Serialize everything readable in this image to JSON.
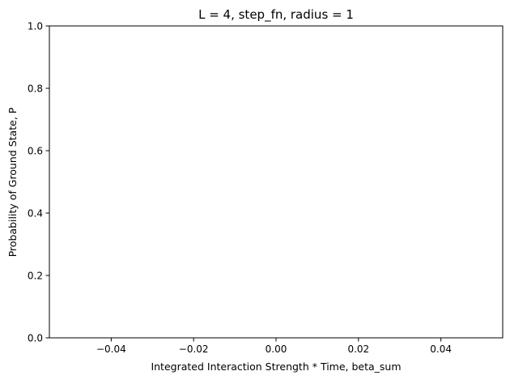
{
  "chart_data": {
    "type": "line",
    "title": "L = 4, step_fn, radius = 1",
    "xlabel": "Integrated Interaction Strength * Time, beta_sum",
    "ylabel": "Probability of Ground State, P",
    "xlim": [
      -0.055,
      0.055
    ],
    "ylim": [
      0.0,
      1.0
    ],
    "x_ticks": [
      -0.04,
      -0.02,
      0.0,
      0.02,
      0.04
    ],
    "x_tick_labels": [
      "−0.04",
      "−0.02",
      "0.00",
      "0.02",
      "0.04"
    ],
    "y_ticks": [
      0.0,
      0.2,
      0.4,
      0.6,
      0.8,
      1.0
    ],
    "y_tick_labels": [
      "0.0",
      "0.2",
      "0.4",
      "0.6",
      "0.8",
      "1.0"
    ],
    "grid": false,
    "series": []
  }
}
